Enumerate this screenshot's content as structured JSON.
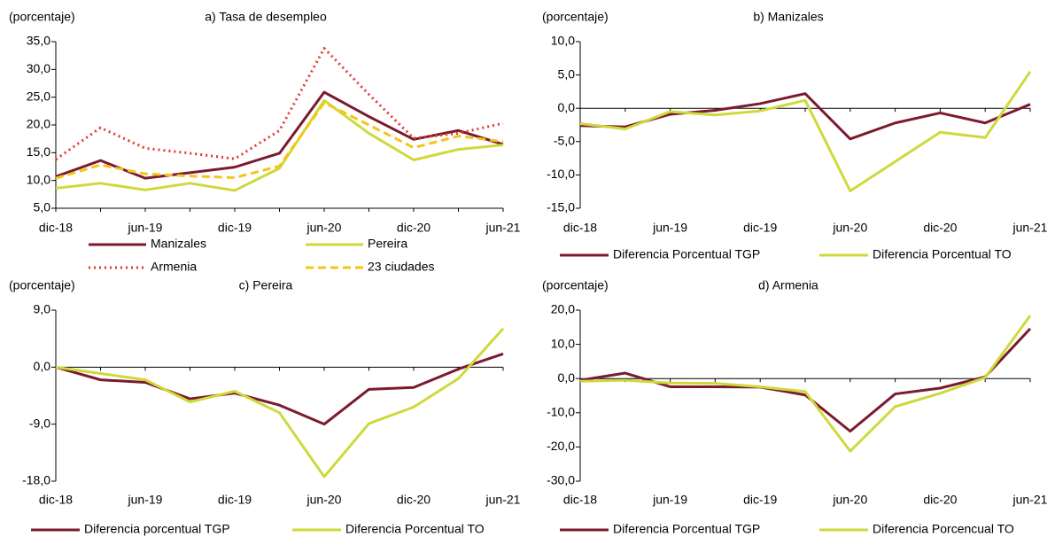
{
  "chart_data": [
    {
      "type": "line",
      "title": "a) Tasa de desempleo",
      "y_label": "(porcentaje)",
      "categories": [
        "dic-18",
        null,
        "jun-19",
        null,
        "dic-19",
        null,
        "jun-20",
        null,
        "dic-20",
        null,
        "jun-21"
      ],
      "ylim": [
        5,
        35
      ],
      "yticks": [
        {
          "value": 5,
          "label": "5,0"
        },
        {
          "value": 10,
          "label": "10,0"
        },
        {
          "value": 15,
          "label": "15,0"
        },
        {
          "value": 20,
          "label": "20,0"
        },
        {
          "value": 25,
          "label": "25,0"
        },
        {
          "value": 30,
          "label": "30,0"
        },
        {
          "value": 35,
          "label": "35,0"
        }
      ],
      "series": [
        {
          "name": "Manizales",
          "color": "#7b1a2e",
          "style": "solid",
          "values": [
            10.7,
            13.6,
            10.4,
            11.4,
            12.4,
            14.9,
            25.9,
            21.5,
            17.4,
            19.0,
            16.5
          ]
        },
        {
          "name": "Pereira",
          "color": "#cfd93a",
          "style": "solid",
          "values": [
            8.6,
            9.5,
            8.3,
            9.5,
            8.2,
            12.2,
            24.4,
            18.5,
            13.7,
            15.6,
            16.4
          ]
        },
        {
          "name": "Armenia",
          "color": "#e03a2e",
          "style": "dotted",
          "values": [
            13.8,
            19.5,
            15.8,
            14.9,
            13.9,
            19.0,
            33.8,
            25.5,
            17.6,
            18.5,
            20.3
          ]
        },
        {
          "name": "23 ciudades",
          "color": "#f5c518",
          "style": "dashed",
          "values": [
            10.4,
            12.8,
            11.2,
            10.8,
            10.5,
            12.6,
            24.0,
            20.0,
            15.9,
            18.0,
            17.0
          ]
        }
      ]
    },
    {
      "type": "line",
      "title": "b) Manizales",
      "y_label": "(porcentaje)",
      "categories": [
        "dic-18",
        null,
        "jun-19",
        null,
        "dic-19",
        null,
        "jun-20",
        null,
        "dic-20",
        null,
        "jun-21"
      ],
      "ylim": [
        -15,
        10
      ],
      "yticks": [
        {
          "value": -15,
          "label": "-15,0"
        },
        {
          "value": -10,
          "label": "-10,0"
        },
        {
          "value": -5,
          "label": "-5,0"
        },
        {
          "value": 0,
          "label": "0,0"
        },
        {
          "value": 5,
          "label": "5,0"
        },
        {
          "value": 10,
          "label": "10,0"
        }
      ],
      "series": [
        {
          "name": "Diferencia Porcentual TGP",
          "color": "#7b1a2e",
          "style": "solid",
          "values": [
            -2.6,
            -2.8,
            -0.9,
            -0.3,
            0.7,
            2.2,
            -4.6,
            -2.2,
            -0.7,
            -2.2,
            0.6
          ]
        },
        {
          "name": "Diferencia Porcentual TO",
          "color": "#cfd93a",
          "style": "solid",
          "values": [
            -2.3,
            -3.1,
            -0.5,
            -1.0,
            -0.4,
            1.2,
            -12.4,
            -8.0,
            -3.6,
            -4.4,
            5.5
          ]
        }
      ]
    },
    {
      "type": "line",
      "title": "c) Pereira",
      "y_label": "(porcentaje)",
      "categories": [
        "dic-18",
        null,
        "jun-19",
        null,
        "dic-19",
        null,
        "jun-20",
        null,
        "dic-20",
        null,
        "jun-21"
      ],
      "ylim": [
        -18,
        9
      ],
      "yticks": [
        {
          "value": -18,
          "label": "-18,0"
        },
        {
          "value": -9,
          "label": "-9,0"
        },
        {
          "value": 0,
          "label": "0,0"
        },
        {
          "value": 9,
          "label": "9,0"
        }
      ],
      "series": [
        {
          "name": "Diferencia porcentual TGP",
          "color": "#7b1a2e",
          "style": "solid",
          "values": [
            0,
            -2.0,
            -2.4,
            -5.0,
            -4.1,
            -6.0,
            -9.0,
            -3.5,
            -3.2,
            -0.3,
            2.1
          ]
        },
        {
          "name": "Diferencia Porcentual TO",
          "color": "#cfd93a",
          "style": "solid",
          "values": [
            0,
            -1.0,
            -2.0,
            -5.5,
            -3.8,
            -7.2,
            -17.3,
            -8.9,
            -6.3,
            -1.8,
            6.1
          ]
        }
      ]
    },
    {
      "type": "line",
      "title": "d) Armenia",
      "y_label": "(porcentaje)",
      "categories": [
        "dic-18",
        null,
        "jun-19",
        null,
        "dic-19",
        null,
        "jun-20",
        null,
        "dic-20",
        null,
        "jun-21"
      ],
      "ylim": [
        -30,
        20
      ],
      "yticks": [
        {
          "value": -30,
          "label": "-30,0"
        },
        {
          "value": -20,
          "label": "-20,0"
        },
        {
          "value": -10,
          "label": "-10,0"
        },
        {
          "value": 0,
          "label": "0,0"
        },
        {
          "value": 10,
          "label": "10,0"
        },
        {
          "value": 20,
          "label": "20,0"
        }
      ],
      "series": [
        {
          "name": "Diferencia Porcentual TGP",
          "color": "#7b1a2e",
          "style": "solid",
          "values": [
            -0.5,
            1.6,
            -2.4,
            -2.4,
            -2.5,
            -4.8,
            -15.4,
            -4.5,
            -2.8,
            0.5,
            14.6
          ]
        },
        {
          "name": "Diferencia Porcencual TO",
          "color": "#cfd93a",
          "style": "solid",
          "values": [
            -0.8,
            -0.5,
            -1.3,
            -1.4,
            -2.4,
            -3.8,
            -21.2,
            -8.2,
            -4.3,
            0.3,
            18.4
          ]
        }
      ]
    }
  ]
}
